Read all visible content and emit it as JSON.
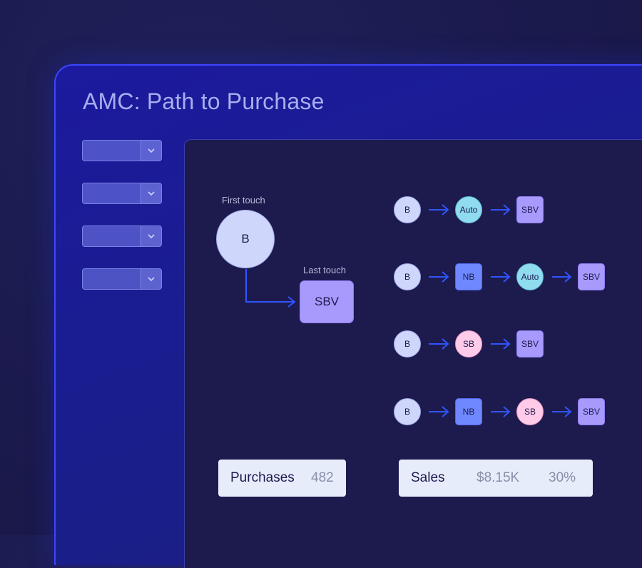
{
  "app": {
    "title": "AMC: Path to Purchase"
  },
  "filters": [
    {
      "value": ""
    },
    {
      "value": ""
    },
    {
      "value": ""
    },
    {
      "value": ""
    }
  ],
  "journey": {
    "first_touch_label": "First touch",
    "last_touch_label": "Last touch",
    "first_touch_node": "B",
    "last_touch_node": "SBV"
  },
  "paths": [
    [
      "B",
      "Auto",
      "SBV"
    ],
    [
      "B",
      "NB",
      "Auto",
      "SBV"
    ],
    [
      "B",
      "SB",
      "SBV"
    ],
    [
      "B",
      "NB",
      "SB",
      "SBV"
    ]
  ],
  "stats": {
    "purchases_label": "Purchases",
    "purchases_value": "482",
    "sales_label": "Sales",
    "sales_value": "$8.15K",
    "sales_percent": "30%"
  },
  "colors": {
    "accent": "#3b45ff",
    "arrow": "#2f55ff",
    "b_node": "#cfd6fb",
    "auto_node": "#8fdcef",
    "sb_node": "#ffcbe8",
    "nb_node": "#6f88ff",
    "sbv_node": "#a79afc"
  }
}
